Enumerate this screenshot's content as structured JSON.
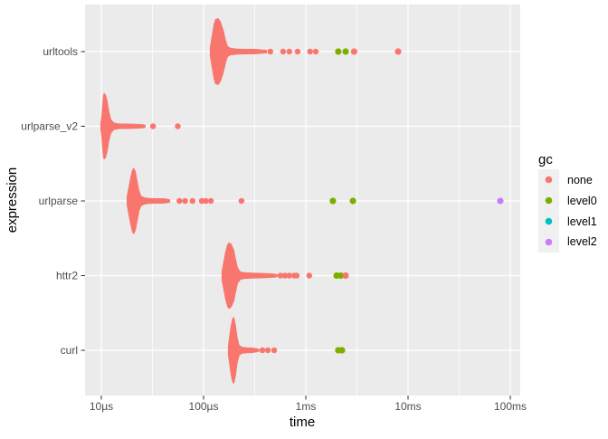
{
  "chart_data": {
    "type": "beeswarm",
    "title": "",
    "xlabel": "time",
    "ylabel": "expression",
    "x_scale": "log10",
    "x_range_us": [
      6.9,
      125000
    ],
    "grid": true,
    "panel_color": "#EBEBEB",
    "grid_color": "#FFFFFF",
    "x_ticks": [
      {
        "us": 10,
        "label": "10µs"
      },
      {
        "us": 100,
        "label": "100µs"
      },
      {
        "us": 1000,
        "label": "1ms"
      },
      {
        "us": 10000,
        "label": "10ms"
      },
      {
        "us": 100000,
        "label": "100ms"
      }
    ],
    "x_minor_us": [
      31.6,
      316,
      3160,
      31600
    ],
    "categories": [
      "urltools",
      "urlparse_v2",
      "urlparse",
      "httr2",
      "curl"
    ],
    "gc_colors": {
      "none": "#F8766D",
      "level0": "#7CAE00",
      "level1": "#00BFC4",
      "level2": "#C77CFF"
    },
    "series": [
      {
        "name": "urltools",
        "blob_profile_us_density": [
          [
            115,
            0.12
          ],
          [
            120,
            0.45
          ],
          [
            125,
            0.8
          ],
          [
            130,
            0.97
          ],
          [
            139,
            1.0
          ],
          [
            147,
            0.9
          ],
          [
            157,
            0.65
          ],
          [
            166,
            0.32
          ],
          [
            173,
            0.16
          ],
          [
            184,
            0.11
          ],
          [
            213,
            0.09
          ],
          [
            261,
            0.08
          ],
          [
            320,
            0.08
          ],
          [
            376,
            0.06
          ],
          [
            416,
            0.05
          ]
        ],
        "outlier_points_us": [
          450,
          600,
          690,
          830,
          1100,
          1250
        ],
        "gc_points": [
          {
            "gc": "level0",
            "us": 2080
          },
          {
            "gc": "level0",
            "us": 2450
          },
          {
            "gc": "none",
            "us": 2970
          },
          {
            "gc": "none",
            "us": 8000
          }
        ]
      },
      {
        "name": "urlparse_v2",
        "blob_profile_us_density": [
          [
            9.8,
            0.1
          ],
          [
            10.0,
            0.28
          ],
          [
            10.2,
            0.65
          ],
          [
            10.4,
            0.92
          ],
          [
            10.6,
            1.0
          ],
          [
            11.1,
            0.94
          ],
          [
            11.5,
            0.75
          ],
          [
            12.0,
            0.42
          ],
          [
            12.5,
            0.2
          ],
          [
            13.3,
            0.11
          ],
          [
            15.0,
            0.08
          ],
          [
            18.4,
            0.08
          ],
          [
            22.6,
            0.07
          ],
          [
            25.5,
            0.06
          ],
          [
            27.1,
            0.04
          ]
        ],
        "outlier_points_us": [
          32,
          56
        ],
        "gc_points": []
      },
      {
        "name": "urlparse",
        "blob_profile_us_density": [
          [
            17.7,
            0.13
          ],
          [
            18.4,
            0.4
          ],
          [
            19.2,
            0.7
          ],
          [
            20.0,
            0.93
          ],
          [
            20.8,
            1.0
          ],
          [
            21.7,
            0.88
          ],
          [
            22.6,
            0.6
          ],
          [
            23.6,
            0.3
          ],
          [
            24.5,
            0.16
          ],
          [
            26.1,
            0.11
          ],
          [
            28.9,
            0.09
          ],
          [
            33.9,
            0.08
          ],
          [
            40.0,
            0.08
          ],
          [
            45.2,
            0.06
          ],
          [
            47.1,
            0.04
          ]
        ],
        "outlier_points_us": [
          58,
          66,
          78,
          96,
          105,
          118,
          235
        ],
        "gc_points": [
          {
            "gc": "level0",
            "us": 1840
          },
          {
            "gc": "level0",
            "us": 2890
          },
          {
            "gc": "level2",
            "us": 80000
          }
        ]
      },
      {
        "name": "httr2",
        "blob_profile_us_density": [
          [
            150,
            0.13
          ],
          [
            156,
            0.4
          ],
          [
            163,
            0.72
          ],
          [
            170,
            0.92
          ],
          [
            177,
            1.0
          ],
          [
            188,
            0.94
          ],
          [
            200,
            0.75
          ],
          [
            208,
            0.48
          ],
          [
            217,
            0.23
          ],
          [
            231,
            0.12
          ],
          [
            250,
            0.1
          ],
          [
            294,
            0.09
          ],
          [
            360,
            0.08
          ],
          [
            434,
            0.07
          ],
          [
            490,
            0.06
          ],
          [
            530,
            0.04
          ]
        ],
        "outlier_points_us": [
          565,
          625,
          690,
          770,
          815,
          1080
        ],
        "gc_points": [
          {
            "gc": "level0",
            "us": 2000
          },
          {
            "gc": "level0",
            "us": 2200
          },
          {
            "gc": "none",
            "us": 2450
          }
        ]
      },
      {
        "name": "curl",
        "blob_profile_us_density": [
          [
            173,
            0.13
          ],
          [
            177,
            0.35
          ],
          [
            184,
            0.72
          ],
          [
            191,
            0.96
          ],
          [
            199,
            1.0
          ],
          [
            207,
            0.75
          ],
          [
            215,
            0.38
          ],
          [
            224,
            0.16
          ],
          [
            238,
            0.1
          ],
          [
            264,
            0.09
          ],
          [
            300,
            0.08
          ],
          [
            331,
            0.06
          ],
          [
            351,
            0.04
          ]
        ],
        "outlier_points_us": [
          376,
          425,
          490
        ],
        "gc_points": [
          {
            "gc": "level0",
            "us": 2080
          },
          {
            "gc": "level0",
            "us": 2260
          }
        ]
      }
    ],
    "legend": {
      "title": "gc",
      "position": "right",
      "entries": [
        {
          "label": "none",
          "color": "#F8766D"
        },
        {
          "label": "level0",
          "color": "#7CAE00"
        },
        {
          "label": "level1",
          "color": "#00BFC4"
        },
        {
          "label": "level2",
          "color": "#C77CFF"
        }
      ]
    }
  }
}
